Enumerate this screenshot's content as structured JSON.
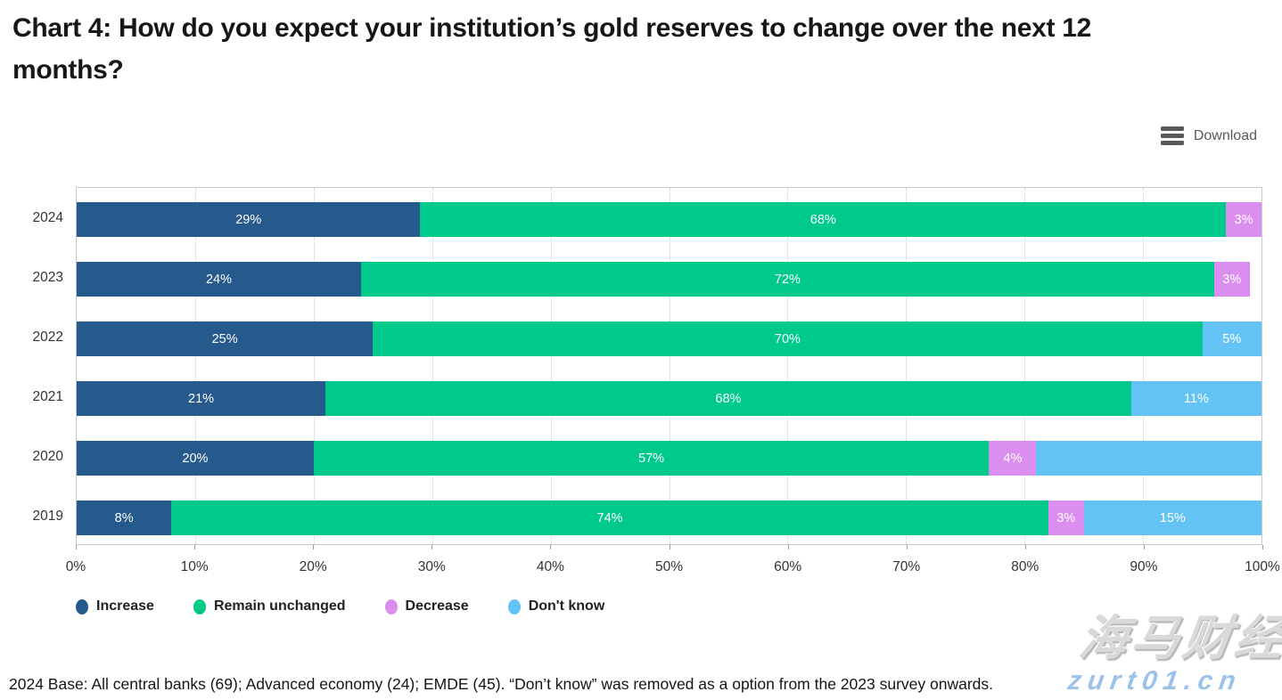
{
  "title": "Chart 4: How do you expect your institution’s gold reserves to change over the next 12 months?",
  "toolbar": {
    "download_label": "Download",
    "icons": {
      "download_menu": "hamburger-bars"
    }
  },
  "chart_data": {
    "type": "bar",
    "orientation": "horizontal",
    "stacked": true,
    "grid": "vertical-dotted",
    "legend_position": "bottom",
    "xlim": [
      0,
      100
    ],
    "x_ticks": [
      "0%",
      "10%",
      "20%",
      "30%",
      "40%",
      "50%",
      "60%",
      "70%",
      "80%",
      "90%",
      "100%"
    ],
    "categories": [
      "2024",
      "2023",
      "2022",
      "2021",
      "2020",
      "2019"
    ],
    "series": [
      {
        "name": "Increase",
        "color": "#26598C",
        "values": [
          29,
          24,
          25,
          21,
          20,
          8
        ],
        "labels": [
          "29%",
          "24%",
          "25%",
          "21%",
          "20%",
          "8%"
        ]
      },
      {
        "name": "Remain unchanged",
        "color": "#00C98C",
        "values": [
          68,
          72,
          70,
          68,
          57,
          74
        ],
        "labels": [
          "68%",
          "72%",
          "70%",
          "68%",
          "57%",
          "74%"
        ]
      },
      {
        "name": "Decrease",
        "color": "#DC8EF0",
        "values": [
          3,
          3,
          0,
          0,
          4,
          3
        ],
        "labels": [
          "3%",
          "3%",
          "",
          "",
          "4%",
          "3%"
        ]
      },
      {
        "name": "Don't know",
        "color": "#63C3F5",
        "values": [
          0,
          0,
          5,
          11,
          19,
          15
        ],
        "labels": [
          "",
          "",
          "5%",
          "11%",
          "",
          "15%"
        ]
      }
    ]
  },
  "footnote": "2024 Base: All central banks (69); Advanced economy (24); EMDE (45). “Don’t know” was removed as a option from the 2023 survey onwards.",
  "watermark": {
    "brand": "海马财经",
    "site": "zurt01.cn"
  }
}
